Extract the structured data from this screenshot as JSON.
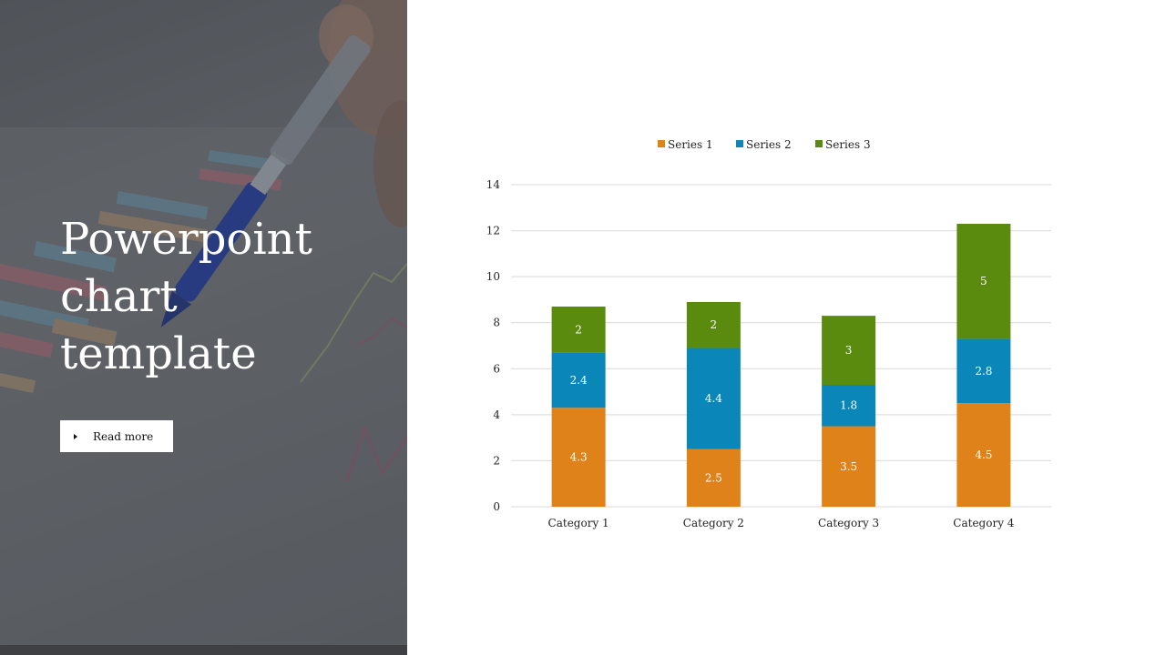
{
  "slide": {
    "title": "Powerpoint\nchart\ntemplate",
    "read_more_label": "Read more"
  },
  "chart_data": {
    "type": "bar",
    "stacked": true,
    "categories": [
      "Category 1",
      "Category 2",
      "Category 3",
      "Category 4"
    ],
    "series": [
      {
        "name": "Series 1",
        "color": "#E0821A",
        "values": [
          4.3,
          2.5,
          3.5,
          4.5
        ]
      },
      {
        "name": "Series 2",
        "color": "#0A87B8",
        "values": [
          2.4,
          4.4,
          1.8,
          2.8
        ]
      },
      {
        "name": "Series 3",
        "color": "#5A8A0E",
        "values": [
          2,
          2,
          3,
          5
        ]
      }
    ],
    "ylim": [
      0,
      14
    ],
    "yticks": [
      0,
      2,
      4,
      6,
      8,
      10,
      12,
      14
    ],
    "grid": true,
    "legend": "top"
  }
}
